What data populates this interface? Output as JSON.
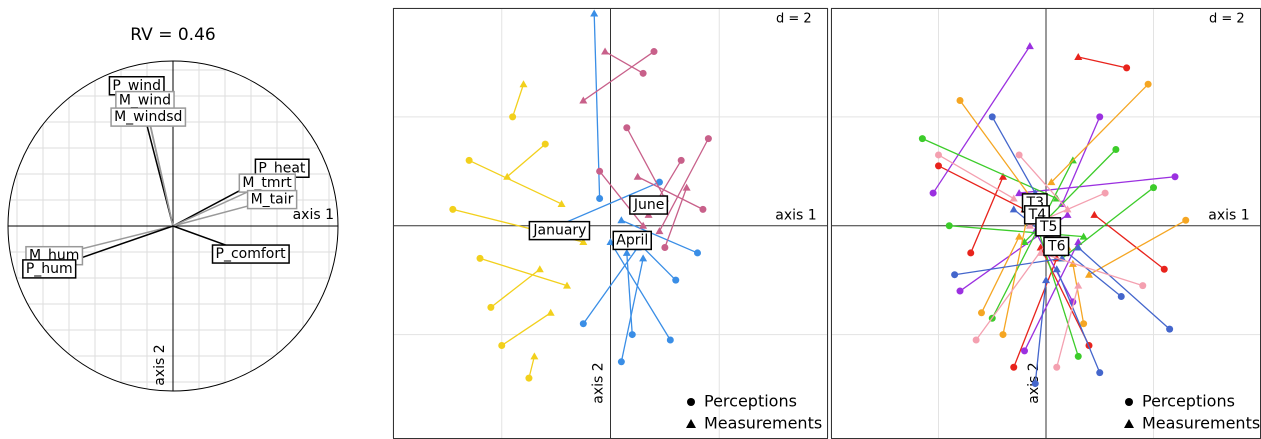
{
  "chart_data": [
    {
      "type": "correlation-circle",
      "title": "RV = 0.46",
      "x_label": "axis 1",
      "y_label": "axis 2",
      "xlim": [
        -1,
        1
      ],
      "ylim": [
        -1,
        1
      ],
      "grid": true,
      "vectors": [
        {
          "label": "P_wind",
          "x": -0.22,
          "y": 0.85,
          "color": "#000000"
        },
        {
          "label": "M_wind",
          "x": -0.17,
          "y": 0.76,
          "color": "#999999"
        },
        {
          "label": "M_windsd",
          "x": -0.15,
          "y": 0.66,
          "color": "#999999"
        },
        {
          "label": "P_heat",
          "x": 0.66,
          "y": 0.35,
          "color": "#000000"
        },
        {
          "label": "M_tmrt",
          "x": 0.57,
          "y": 0.26,
          "color": "#999999"
        },
        {
          "label": "M_tair",
          "x": 0.6,
          "y": 0.16,
          "color": "#999999"
        },
        {
          "label": "M_hum",
          "x": -0.72,
          "y": -0.18,
          "color": "#999999"
        },
        {
          "label": "P_hum",
          "x": -0.75,
          "y": -0.26,
          "color": "#000000"
        },
        {
          "label": "P_comfort",
          "x": 0.47,
          "y": -0.17,
          "color": "#000000"
        }
      ]
    },
    {
      "type": "matched-scatter",
      "d": {
        "value": 2,
        "label": "d = 2"
      },
      "x_label": "axis 1",
      "y_label": "axis 2",
      "xlim": [
        -4,
        4
      ],
      "ylim": [
        -3.9,
        4
      ],
      "legend": [
        "Perceptions",
        "Measurements"
      ],
      "groups": [
        {
          "name": "January",
          "color": "#f2d01c",
          "center": [
            -0.93,
            -0.09
          ],
          "perceptions_x": [
            -2.6,
            -2.2,
            -1.8,
            -2.9,
            -1.5,
            -2.4,
            -1.2,
            -2.0
          ],
          "perceptions_y": [
            1.2,
            -1.5,
            2.0,
            0.3,
            -2.8,
            -0.6,
            1.5,
            -2.2
          ],
          "measurements_x": [
            -0.9,
            -1.3,
            -1.6,
            -0.5,
            -1.4,
            -0.8,
            -1.9,
            -1.1
          ],
          "measurements_y": [
            0.4,
            -0.8,
            2.6,
            -0.3,
            -2.4,
            -1.1,
            0.9,
            -1.6
          ]
        },
        {
          "name": "April",
          "color": "#3a8ee6",
          "center": [
            0.4,
            -0.27
          ],
          "perceptions_x": [
            0.4,
            1.2,
            -0.5,
            0.9,
            1.6,
            0.2,
            -0.2,
            1.1
          ],
          "perceptions_y": [
            -2.0,
            -1.0,
            -1.8,
            0.8,
            -0.5,
            -2.5,
            0.5,
            -2.1
          ],
          "measurements_x": [
            0.3,
            0.4,
            0.5,
            -1.2,
            0.2,
            0.6,
            -0.3,
            0.0
          ],
          "measurements_y": [
            -0.5,
            -0.2,
            -0.4,
            -0.1,
            0.1,
            -0.6,
            3.9,
            -0.3
          ]
        },
        {
          "name": "June",
          "color": "#c8608a",
          "center": [
            0.71,
            0.38
          ],
          "perceptions_x": [
            0.6,
            1.3,
            0.3,
            1.7,
            -0.2,
            1.0,
            0.8,
            1.8
          ],
          "perceptions_y": [
            2.8,
            1.2,
            1.8,
            0.3,
            1.0,
            -0.4,
            3.2,
            1.6
          ],
          "measurements_x": [
            -0.1,
            0.7,
            1.0,
            0.5,
            0.6,
            1.4,
            -0.5,
            0.9
          ],
          "measurements_y": [
            3.2,
            0.2,
            0.5,
            0.9,
            0.0,
            0.7,
            2.3,
            -0.1
          ]
        }
      ]
    },
    {
      "type": "matched-scatter",
      "d": {
        "value": 2,
        "label": "d = 2"
      },
      "x_label": "axis 1",
      "y_label": "axis 2",
      "xlim": [
        -4,
        4
      ],
      "ylim": [
        -3.9,
        4
      ],
      "legend": [
        "Perceptions",
        "Measurements"
      ],
      "groups": [
        {
          "name": "T3",
          "color": "#e8231c",
          "center": [
            -0.2,
            0.42
          ],
          "perceptions_x": [
            -2.0,
            1.5,
            -0.6,
            2.2,
            0.8,
            -1.4
          ],
          "perceptions_y": [
            1.1,
            2.9,
            -2.6,
            -0.8,
            -2.2,
            -0.5
          ],
          "measurements_x": [
            -0.4,
            0.6,
            0.2,
            0.9,
            -0.1,
            -0.8
          ],
          "measurements_y": [
            0.3,
            3.1,
            -0.6,
            0.2,
            -0.4,
            0.9
          ]
        },
        {
          "name": "T4",
          "color": "#9b30e0",
          "center": [
            -0.16,
            0.2
          ],
          "perceptions_x": [
            -2.1,
            1.0,
            -0.4,
            2.4,
            0.5,
            -1.6
          ],
          "perceptions_y": [
            0.6,
            2.0,
            -2.3,
            0.9,
            -1.4,
            -1.2
          ],
          "measurements_x": [
            -0.3,
            0.3,
            0.6,
            -0.5,
            -0.2,
            0.4
          ],
          "measurements_y": [
            3.3,
            0.4,
            -0.3,
            0.6,
            -0.1,
            0.2
          ]
        },
        {
          "name": "T5",
          "color": "#3ccc2a",
          "center": [
            0.05,
            -0.02
          ],
          "perceptions_x": [
            -2.3,
            1.3,
            -1.0,
            2.0,
            0.6,
            -1.8
          ],
          "perceptions_y": [
            1.6,
            1.4,
            -1.7,
            0.7,
            -2.4,
            0.0
          ],
          "measurements_x": [
            0.2,
            -0.4,
            0.5,
            0.3,
            -0.2,
            0.7
          ],
          "measurements_y": [
            0.5,
            -0.3,
            1.2,
            -0.6,
            0.1,
            -0.2
          ]
        },
        {
          "name": "T6",
          "color": "#f5a623",
          "center": [
            0.2,
            -0.38
          ],
          "perceptions_x": [
            -1.6,
            1.9,
            -0.8,
            2.6,
            0.7,
            -1.2
          ],
          "perceptions_y": [
            2.3,
            2.6,
            -2.0,
            0.1,
            -1.8,
            -1.6
          ],
          "measurements_x": [
            0.4,
            0.1,
            -0.3,
            0.8,
            0.5,
            -0.5
          ],
          "measurements_y": [
            -0.4,
            0.8,
            0.4,
            -0.9,
            -0.7,
            -0.2
          ]
        },
        {
          "name": null,
          "color": "#4466cc",
          "center": [
            0.1,
            -0.5
          ],
          "perceptions_x": [
            -1.7,
            1.4,
            -0.2,
            2.3,
            1.0,
            -1.0
          ],
          "perceptions_y": [
            -0.9,
            -1.3,
            -2.9,
            -1.9,
            -2.7,
            2.0
          ],
          "measurements_x": [
            0.3,
            -0.6,
            0.0,
            0.6,
            0.2,
            -0.2
          ],
          "measurements_y": [
            -0.6,
            0.3,
            -1.0,
            -0.4,
            -0.8,
            0.6
          ]
        },
        {
          "name": null,
          "color": "#f4a0b0",
          "center": [
            0.0,
            -0.1
          ],
          "perceptions_x": [
            -1.3,
            1.1,
            -0.5,
            1.8,
            0.2,
            -2.0
          ],
          "perceptions_y": [
            -2.1,
            0.6,
            1.3,
            -1.1,
            -2.6,
            1.3
          ],
          "measurements_x": [
            0.1,
            -0.3,
            0.4,
            -0.1,
            0.6,
            -0.6
          ],
          "measurements_y": [
            -0.2,
            0.0,
            0.3,
            -0.5,
            -1.1,
            0.5
          ]
        }
      ]
    }
  ]
}
